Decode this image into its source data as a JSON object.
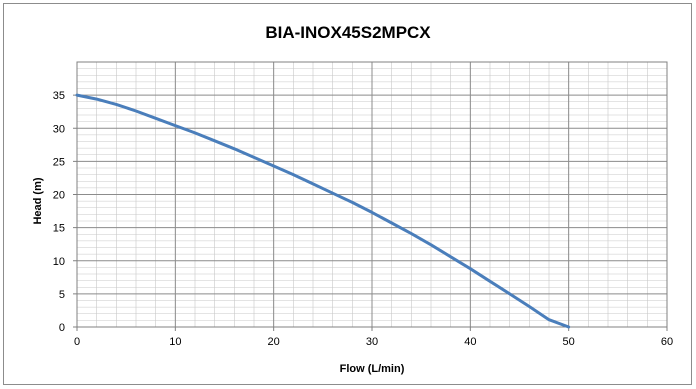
{
  "chart_data": {
    "type": "line",
    "title": "BIA-INOX45S2MPCX",
    "xlabel": "Flow (L/min)",
    "ylabel": "Head (m)",
    "xlim": [
      0,
      60
    ],
    "ylim": [
      0,
      40
    ],
    "x_ticks": [
      0,
      10,
      20,
      30,
      40,
      50,
      60
    ],
    "y_ticks": [
      0,
      5,
      10,
      15,
      20,
      25,
      30,
      35
    ],
    "grid": true,
    "legend": "none",
    "series": [
      {
        "color": "#4a7ebb",
        "x": [
          0,
          2,
          4,
          6,
          8,
          10,
          12,
          14,
          16,
          18,
          20,
          22,
          24,
          26,
          28,
          30,
          32,
          34,
          36,
          38,
          40,
          42,
          44,
          46,
          48,
          50
        ],
        "y": [
          35,
          34.4,
          33.6,
          32.6,
          31.5,
          30.4,
          29.3,
          28.1,
          26.9,
          25.6,
          24.3,
          23.0,
          21.6,
          20.2,
          18.8,
          17.3,
          15.7,
          14.1,
          12.4,
          10.6,
          8.8,
          6.9,
          5.0,
          3.1,
          1.1,
          0
        ]
      }
    ]
  }
}
